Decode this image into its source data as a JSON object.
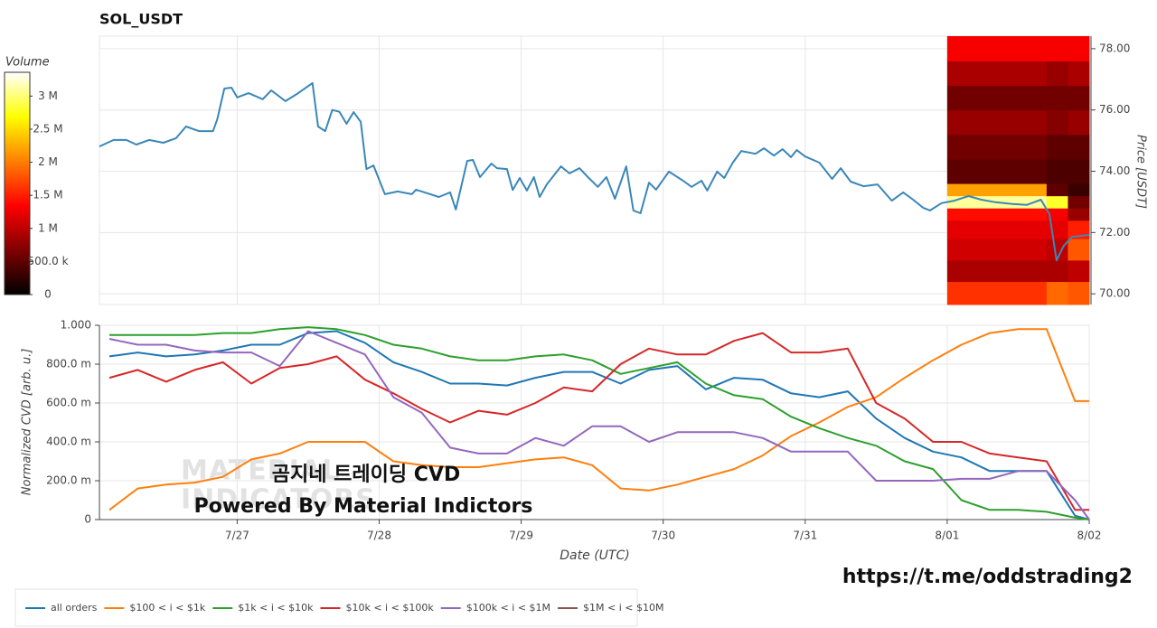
{
  "chart_data": [
    {
      "type": "line",
      "title": "SOL_USDT",
      "ylabel": "Price [USDT]",
      "xlim": [
        0.03,
        7
      ],
      "xticks": [
        1,
        2,
        3,
        4,
        5,
        6,
        7
      ],
      "ylim": [
        69.65,
        78.41
      ],
      "yticks": [
        {
          "value": 70,
          "label": "70.00"
        },
        {
          "value": 72,
          "label": "72.00"
        },
        {
          "value": 74,
          "label": "74.00"
        },
        {
          "value": 76,
          "label": "76.00"
        },
        {
          "value": 78,
          "label": "78.00"
        }
      ],
      "grid": true,
      "x": [
        0.03,
        0.13,
        0.22,
        0.29,
        0.38,
        0.48,
        0.57,
        0.64,
        0.73,
        0.83,
        0.86,
        0.91,
        0.96,
        1.0,
        1.08,
        1.18,
        1.24,
        1.34,
        1.43,
        1.53,
        1.57,
        1.62,
        1.67,
        1.72,
        1.77,
        1.82,
        1.87,
        1.91,
        1.96,
        2.04,
        2.13,
        2.23,
        2.26,
        2.32,
        2.42,
        2.5,
        2.54,
        2.62,
        2.66,
        2.71,
        2.79,
        2.83,
        2.9,
        2.94,
        2.99,
        3.04,
        3.09,
        3.13,
        3.18,
        3.28,
        3.34,
        3.41,
        3.47,
        3.54,
        3.6,
        3.66,
        3.74,
        3.79,
        3.84,
        3.9,
        3.95,
        4.04,
        4.14,
        4.2,
        4.27,
        4.31,
        4.38,
        4.43,
        4.49,
        4.55,
        4.65,
        4.71,
        4.78,
        4.84,
        4.9,
        4.94,
        5.0,
        5.1,
        5.19,
        5.25,
        5.32,
        5.41,
        5.51,
        5.61,
        5.69,
        5.76,
        5.83,
        5.88,
        5.96,
        6.05,
        6.15,
        6.24,
        6.34,
        6.46,
        6.56,
        6.66,
        6.72,
        6.77,
        6.82,
        6.88,
        7.0
      ],
      "series": [
        {
          "color": "#3a87b8",
          "values": [
            74.81,
            75.02,
            75.02,
            74.87,
            75.02,
            74.93,
            75.08,
            75.46,
            75.31,
            75.31,
            75.7,
            76.7,
            76.73,
            76.41,
            76.55,
            76.35,
            76.64,
            76.29,
            76.55,
            76.88,
            75.46,
            75.31,
            76.0,
            75.94,
            75.55,
            75.93,
            75.61,
            74.07,
            74.19,
            73.25,
            73.34,
            73.25,
            73.4,
            73.31,
            73.16,
            73.31,
            72.75,
            74.34,
            74.37,
            73.81,
            74.25,
            74.1,
            74.07,
            73.39,
            73.78,
            73.37,
            73.81,
            73.16,
            73.57,
            74.16,
            73.93,
            74.1,
            73.81,
            73.49,
            73.81,
            73.1,
            74.16,
            72.72,
            72.63,
            73.63,
            73.4,
            73.99,
            73.69,
            73.49,
            73.69,
            73.37,
            73.99,
            73.78,
            74.28,
            74.66,
            74.57,
            74.75,
            74.51,
            74.72,
            74.46,
            74.69,
            74.48,
            74.28,
            73.75,
            74.1,
            73.66,
            73.51,
            73.57,
            73.04,
            73.31,
            73.07,
            72.81,
            72.72,
            72.96,
            73.04,
            73.19,
            73.07,
            72.99,
            72.93,
            72.9,
            73.07,
            72.6,
            71.09,
            71.56,
            71.86,
            71.92
          ]
        }
      ],
      "heatmap": {
        "xbins": [
          6,
          6.7,
          6.85,
          7
        ],
        "ybins": [
          69.65,
          70.4,
          71.1,
          71.8,
          72.4,
          72.8,
          73.2,
          73.6,
          74.4,
          75.2,
          76.0,
          76.8,
          77.6,
          78.41
        ],
        "values": [
          [
            1600000,
            1900000,
            1800000
          ],
          [
            900000,
            900000,
            1000000
          ],
          [
            1100000,
            1000000,
            1800000
          ],
          [
            1200000,
            1200000,
            1500000
          ],
          [
            1400000,
            1300000,
            800000
          ],
          [
            3100000,
            2800000,
            600000
          ],
          [
            2200000,
            500000,
            300000
          ],
          [
            500000,
            400000,
            400000
          ],
          [
            600000,
            500000,
            500000
          ],
          [
            800000,
            700000,
            800000
          ],
          [
            600000,
            600000,
            600000
          ],
          [
            900000,
            800000,
            900000
          ],
          [
            1300000,
            1300000,
            1300000
          ]
        ]
      },
      "colorbar": {
        "label": "Volume",
        "clim": [
          0,
          3360000
        ],
        "ticks": [
          0,
          {
            "value": 500000,
            "label": "500.0 k"
          },
          {
            "value": 1000000,
            "label": "1 M"
          },
          {
            "value": 1500000,
            "label": "1.5 M"
          },
          {
            "value": 2000000,
            "label": "2 M"
          },
          {
            "value": 2500000,
            "label": "2.5 M"
          },
          {
            "value": 3000000,
            "label": "3 M"
          }
        ]
      }
    },
    {
      "type": "line",
      "xlabel": "Date (UTC)",
      "ylabel": "Normalized CVD [arb. u.]",
      "xlim": [
        0.03,
        7
      ],
      "xticks": [
        {
          "value": 1,
          "label": "7/27"
        },
        {
          "value": 2,
          "label": "7/28"
        },
        {
          "value": 3,
          "label": "7/29"
        },
        {
          "value": 4,
          "label": "7/30"
        },
        {
          "value": 5,
          "label": "7/31"
        },
        {
          "value": 6,
          "label": "8/01"
        },
        {
          "value": 7,
          "label": "8/02"
        }
      ],
      "ylim": [
        0,
        1
      ],
      "yticks": [
        0,
        {
          "value": 0.2,
          "label": "200.0 m"
        },
        {
          "value": 0.4,
          "label": "400.0 m"
        },
        {
          "value": 0.6,
          "label": "600.0 m"
        },
        {
          "value": 0.8,
          "label": "800.0 m"
        },
        {
          "value": 1,
          "label": "1.000"
        }
      ],
      "grid": true,
      "legend": "bottom",
      "x": [
        0.1,
        0.3,
        0.5,
        0.7,
        0.9,
        1.1,
        1.3,
        1.5,
        1.7,
        1.9,
        2.1,
        2.3,
        2.5,
        2.7,
        2.9,
        3.1,
        3.3,
        3.5,
        3.7,
        3.9,
        4.1,
        4.3,
        4.5,
        4.7,
        4.9,
        5.1,
        5.3,
        5.5,
        5.7,
        5.9,
        6.1,
        6.3,
        6.5,
        6.7,
        6.9,
        7.0
      ],
      "series": [
        {
          "name": "all orders",
          "color": "#1f77b4",
          "values": [
            0.84,
            0.86,
            0.84,
            0.85,
            0.87,
            0.9,
            0.9,
            0.96,
            0.97,
            0.91,
            0.81,
            0.76,
            0.7,
            0.7,
            0.69,
            0.73,
            0.76,
            0.76,
            0.7,
            0.77,
            0.79,
            0.67,
            0.73,
            0.72,
            0.65,
            0.63,
            0.66,
            0.52,
            0.42,
            0.35,
            0.32,
            0.25,
            0.25,
            0.25,
            0.02,
            0.0
          ]
        },
        {
          "name": "$100 < i < $1k",
          "color": "#ff7f0e",
          "values": [
            0.05,
            0.16,
            0.18,
            0.19,
            0.22,
            0.31,
            0.34,
            0.4,
            0.4,
            0.4,
            0.3,
            0.28,
            0.27,
            0.27,
            0.29,
            0.31,
            0.32,
            0.28,
            0.16,
            0.15,
            0.18,
            0.22,
            0.26,
            0.33,
            0.43,
            0.5,
            0.58,
            0.63,
            0.73,
            0.82,
            0.9,
            0.96,
            0.98,
            0.98,
            0.61,
            0.61
          ]
        },
        {
          "name": "$1k < i < $10k",
          "color": "#2ca02c",
          "values": [
            0.95,
            0.95,
            0.95,
            0.95,
            0.96,
            0.96,
            0.98,
            0.99,
            0.98,
            0.95,
            0.9,
            0.88,
            0.84,
            0.82,
            0.82,
            0.84,
            0.85,
            0.82,
            0.75,
            0.78,
            0.81,
            0.7,
            0.64,
            0.62,
            0.53,
            0.47,
            0.42,
            0.38,
            0.3,
            0.26,
            0.1,
            0.05,
            0.05,
            0.04,
            0.01,
            0.0
          ]
        },
        {
          "name": "$10k < i < $100k",
          "color": "#d62728",
          "values": [
            0.73,
            0.77,
            0.71,
            0.77,
            0.81,
            0.7,
            0.78,
            0.8,
            0.84,
            0.72,
            0.65,
            0.57,
            0.5,
            0.56,
            0.54,
            0.6,
            0.68,
            0.66,
            0.8,
            0.88,
            0.85,
            0.85,
            0.92,
            0.96,
            0.86,
            0.86,
            0.88,
            0.6,
            0.52,
            0.4,
            0.4,
            0.34,
            0.32,
            0.3,
            0.05,
            0.05
          ]
        },
        {
          "name": "$100k < i < $1M",
          "color": "#9467bd",
          "values": [
            0.93,
            0.9,
            0.9,
            0.87,
            0.86,
            0.86,
            0.79,
            0.97,
            0.91,
            0.85,
            0.63,
            0.55,
            0.37,
            0.34,
            0.34,
            0.42,
            0.38,
            0.48,
            0.48,
            0.4,
            0.45,
            0.45,
            0.45,
            0.42,
            0.35,
            0.35,
            0.35,
            0.2,
            0.2,
            0.2,
            0.21,
            0.21,
            0.25,
            0.25,
            0.1,
            0.0
          ]
        },
        {
          "name": "$1M < i < $10M",
          "color": "#8c564b",
          "values": [
            null,
            null,
            null,
            null,
            null,
            null,
            null,
            null,
            null,
            null,
            null,
            null,
            null,
            null,
            null,
            null,
            null,
            null,
            null,
            null,
            null,
            null,
            null,
            null,
            null,
            null,
            null,
            null,
            null,
            null,
            null,
            null,
            null,
            null,
            null,
            null
          ]
        }
      ]
    }
  ],
  "overlay": {
    "title": "곰지네 트레이딩 CVD",
    "subtitle": "Powered By Material Indictors",
    "watermark": [
      "MATERIAL",
      "INDICATORS"
    ],
    "url": "https://t.me/oddstrading2"
  }
}
